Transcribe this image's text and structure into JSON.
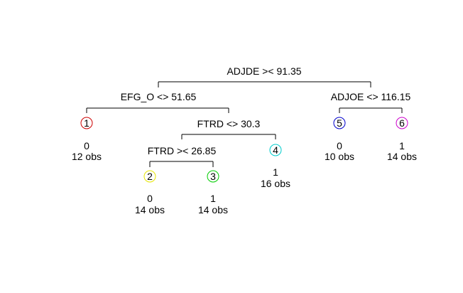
{
  "splits": {
    "root": {
      "label": "ADJDE >< 91.35"
    },
    "left": {
      "label": "EFG_O <> 51.65"
    },
    "right": {
      "label": "ADJOE <> 116.15"
    },
    "ftrd1": {
      "label": "FTRD <> 30.3"
    },
    "ftrd2": {
      "label": "FTRD >< 26.85"
    }
  },
  "leaves": {
    "n1": {
      "id": "1",
      "class": "0",
      "obs": "12 obs",
      "color": "#cc0000"
    },
    "n2": {
      "id": "2",
      "class": "0",
      "obs": "14 obs",
      "color": "#e6e600"
    },
    "n3": {
      "id": "3",
      "class": "1",
      "obs": "14 obs",
      "color": "#00cc00"
    },
    "n4": {
      "id": "4",
      "class": "1",
      "obs": "16 obs",
      "color": "#00cccc"
    },
    "n5": {
      "id": "5",
      "class": "0",
      "obs": "10 obs",
      "color": "#0000cc"
    },
    "n6": {
      "id": "6",
      "class": "1",
      "obs": "14 obs",
      "color": "#cc00cc"
    }
  }
}
